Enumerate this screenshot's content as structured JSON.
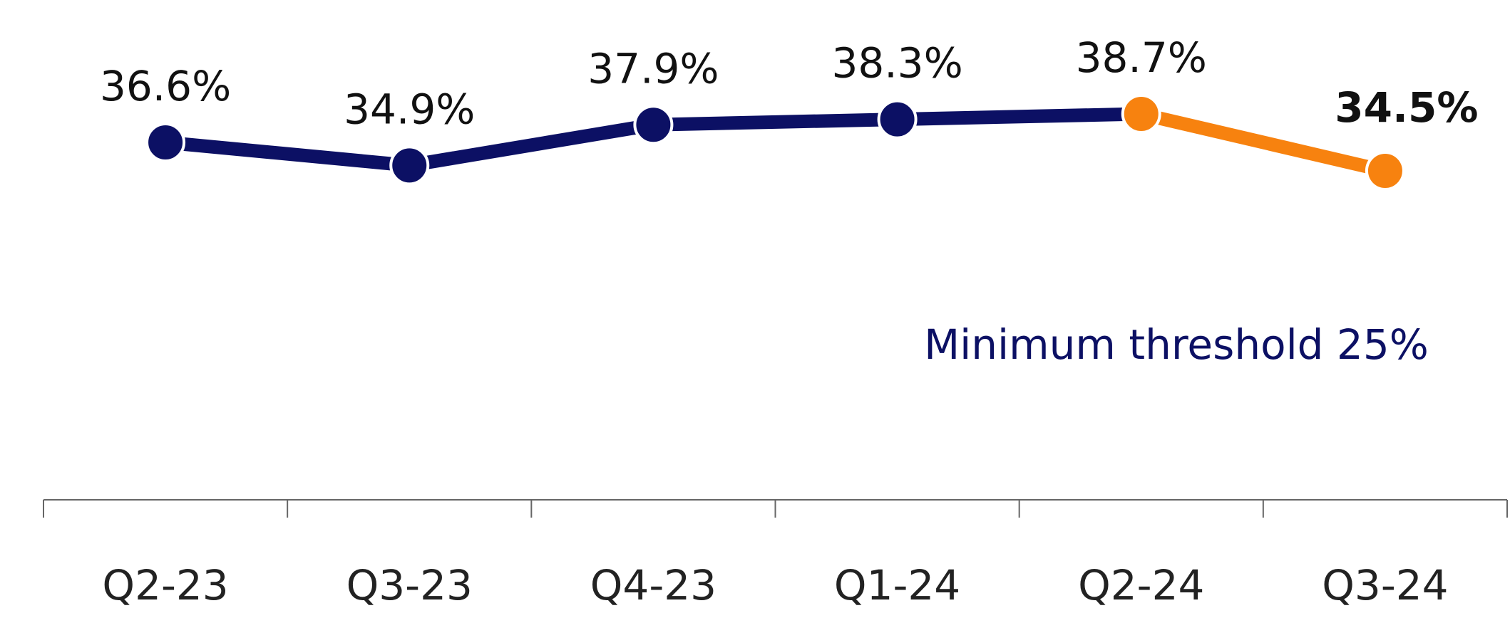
{
  "chart_data": {
    "type": "line",
    "categories": [
      "Q2-23",
      "Q3-23",
      "Q4-23",
      "Q1-24",
      "Q2-24",
      "Q3-24"
    ],
    "series": [
      {
        "color": "#0c1064",
        "point_colors": [
          "#0c1064",
          "#0c1064",
          "#0c1064",
          "#0c1064",
          "#f7820f",
          "#f7820f"
        ],
        "values": [
          36.6,
          34.9,
          37.9,
          38.3,
          38.7,
          34.5
        ],
        "value_labels": [
          "36.6%",
          "34.9%",
          "37.9%",
          "38.3%",
          "38.7%",
          "34.5%"
        ],
        "emphasized_labels": [
          false,
          false,
          false,
          false,
          false,
          true
        ]
      }
    ],
    "annotation": "Minimum threshold 25%",
    "annotation_color": "#0c1064"
  }
}
